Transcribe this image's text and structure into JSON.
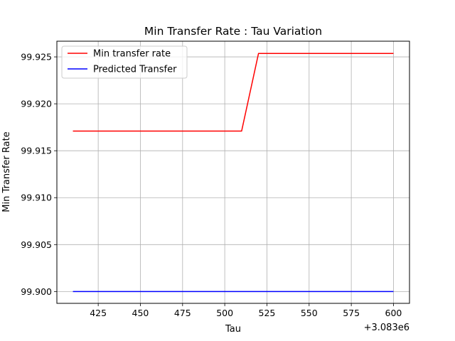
{
  "chart_data": {
    "type": "line",
    "title": "Min Transfer Rate : Tau Variation",
    "xlabel": "Tau",
    "ylabel": "Min Transfer Rate",
    "x_offset_label": "+3.083e6",
    "x_tick_labels": [
      "425",
      "450",
      "475",
      "500",
      "525",
      "550",
      "575",
      "600"
    ],
    "x_ticks": [
      3083425,
      3083450,
      3083475,
      3083500,
      3083525,
      3083550,
      3083575,
      3083600
    ],
    "y_tick_labels": [
      "99.900",
      "99.905",
      "99.910",
      "99.915",
      "99.920",
      "99.925"
    ],
    "y_ticks": [
      99.9,
      99.905,
      99.91,
      99.915,
      99.92,
      99.925
    ],
    "xlim": [
      3083400.5,
      3083609.5
    ],
    "ylim": [
      99.89874,
      99.92667
    ],
    "grid": true,
    "legend_position": "upper-left",
    "series": [
      {
        "name": "Min transfer rate",
        "color": "#ff0000",
        "x": [
          3083410,
          3083420,
          3083430,
          3083440,
          3083450,
          3083460,
          3083470,
          3083480,
          3083490,
          3083500,
          3083510,
          3083520,
          3083530,
          3083540,
          3083550,
          3083560,
          3083570,
          3083580,
          3083590,
          3083600
        ],
        "y": [
          99.9171,
          99.9171,
          99.9171,
          99.9171,
          99.9171,
          99.9171,
          99.9171,
          99.9171,
          99.9171,
          99.9171,
          99.9171,
          99.92536,
          99.92536,
          99.92536,
          99.92536,
          99.92536,
          99.92536,
          99.92536,
          99.92536,
          99.92536
        ]
      },
      {
        "name": "Predicted Transfer",
        "color": "#0000ff",
        "x": [
          3083410,
          3083420,
          3083430,
          3083440,
          3083450,
          3083460,
          3083470,
          3083480,
          3083490,
          3083500,
          3083510,
          3083520,
          3083530,
          3083540,
          3083550,
          3083560,
          3083570,
          3083580,
          3083590,
          3083600
        ],
        "y": [
          99.9,
          99.9,
          99.9,
          99.9,
          99.9,
          99.9,
          99.9,
          99.9,
          99.9,
          99.9,
          99.9,
          99.9,
          99.9,
          99.9,
          99.9,
          99.9,
          99.9,
          99.9,
          99.9,
          99.9
        ]
      }
    ]
  }
}
